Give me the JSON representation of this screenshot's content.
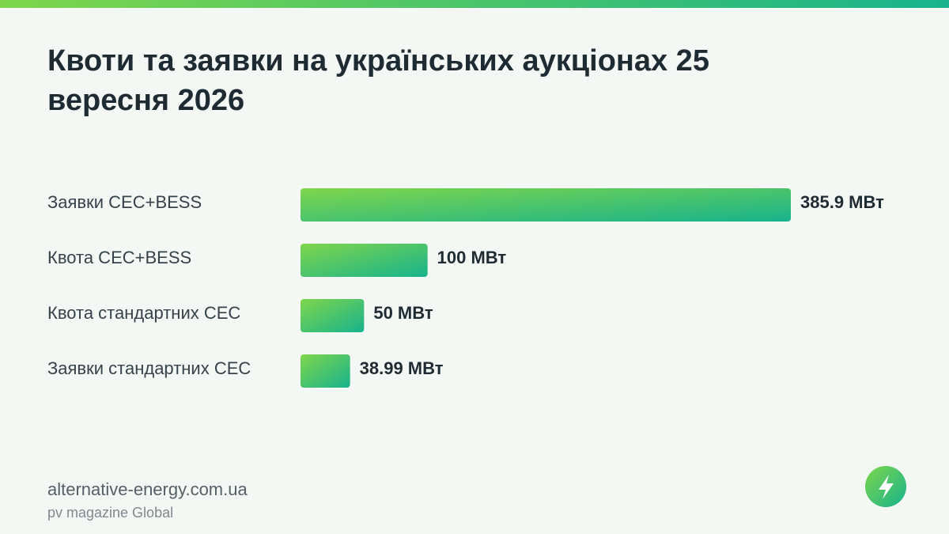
{
  "chart_data": {
    "type": "hbar",
    "title": "Квоти та заявки на українських аукціонах 25 вересня 2026",
    "categories": [
      "Заявки СЕС+BESS",
      "Квота СЕС+BESS",
      "Квота стандартних СЕС",
      "Заявки стандартних СЕС"
    ],
    "values": [
      385.9,
      100,
      50,
      38.99
    ],
    "value_labels": [
      "385.9 МВт",
      "100 МВт",
      "50 МВт",
      "38.99 МВт"
    ],
    "gradient": [
      "#7fd64b",
      "#17b38c"
    ]
  },
  "footer": {
    "site": "alternative-energy.com.ua",
    "source": "pv magazine Global"
  }
}
